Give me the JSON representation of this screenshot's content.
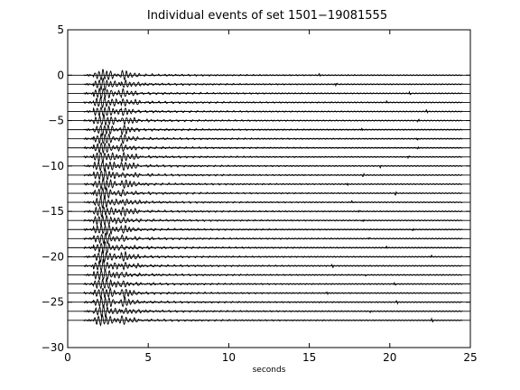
{
  "chart_data": {
    "type": "line",
    "title": "Individual events of set 1501−19081555",
    "xlabel": "seconds",
    "ylabel": "",
    "xlim": [
      0,
      25
    ],
    "ylim": [
      -30,
      5
    ],
    "xticks": [
      0,
      5,
      10,
      15,
      20,
      25
    ],
    "yticks": [
      5,
      0,
      -5,
      -10,
      -15,
      -20,
      -25,
      -30
    ],
    "xtick_labels": [
      "0",
      "5",
      "10",
      "15",
      "20",
      "25"
    ],
    "ytick_labels": [
      "5",
      "0",
      "−5",
      "−10",
      "−15",
      "−20",
      "−25",
      "−30"
    ],
    "grid": false,
    "line_color": "#000000",
    "trace_count": 28,
    "trace_spacing": 1,
    "first_trace_offset": 0,
    "duration_seconds": 24.5,
    "main_arrival_seconds": 2.2,
    "secondary_arrival_seconds": 3.6
  }
}
